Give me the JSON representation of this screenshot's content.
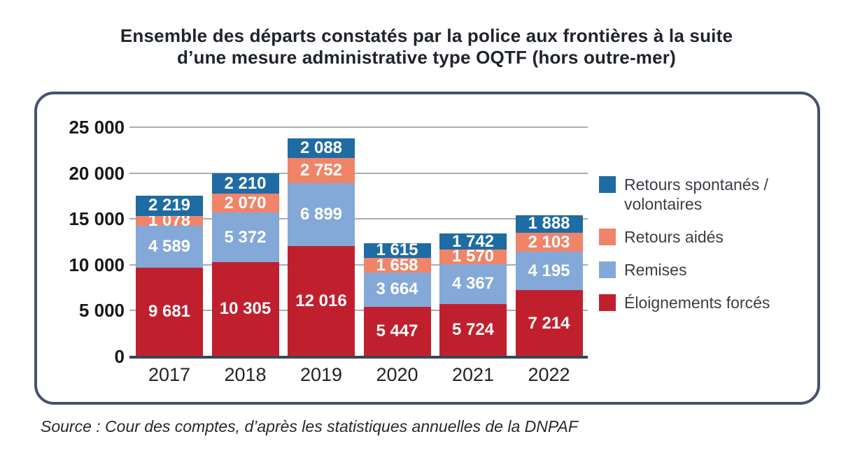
{
  "title": {
    "line1": "Ensemble des départs constatés par la police aux frontières à la suite",
    "line2": "d’une mesure administrative type OQTF (hors outre-mer)"
  },
  "source_text": "Source : Cour des comptes, d’après les statistiques annuelles de la DNPAF",
  "colors": {
    "forced_red": "#c0202e",
    "remises_blue": "#84a9d8",
    "aided_salmon": "#f08468",
    "voluntary_darkblue": "#1f6ba3",
    "frame_border": "#46526b",
    "gridline": "#a7aeb8",
    "axis_line": "#3a4657"
  },
  "chart_data": {
    "type": "bar",
    "stacked": true,
    "title": "Ensemble des départs constatés par la police aux frontières à la suite d’une mesure administrative type OQTF (hors outre-mer)",
    "categories": [
      "2017",
      "2018",
      "2019",
      "2020",
      "2021",
      "2022"
    ],
    "series": [
      {
        "name": "Éloignements forcés",
        "color": "#c0202e",
        "values": [
          9681,
          10305,
          12016,
          5447,
          5724,
          7214
        ]
      },
      {
        "name": "Remises",
        "color": "#84a9d8",
        "values": [
          4589,
          5372,
          6899,
          3664,
          4367,
          4195
        ]
      },
      {
        "name": "Retours aidés",
        "color": "#f08468",
        "values": [
          1078,
          2070,
          2752,
          1658,
          1570,
          2103
        ]
      },
      {
        "name": "Retours spontanés / volontaires",
        "color": "#1f6ba3",
        "values": [
          2219,
          2210,
          2088,
          1615,
          1742,
          1888
        ]
      }
    ],
    "legend": [
      {
        "label": "Retours spontanés / volontaires",
        "color": "#1f6ba3"
      },
      {
        "label": "Retours aidés",
        "color": "#f08468"
      },
      {
        "label": "Remises",
        "color": "#84a9d8"
      },
      {
        "label": "Éloignements forcés",
        "color": "#c0202e"
      }
    ],
    "xlabel": "",
    "ylabel": "",
    "ylim": [
      0,
      25000
    ],
    "yticks": [
      0,
      5000,
      10000,
      15000,
      20000,
      25000
    ],
    "ytick_labels": [
      "0",
      "5 000",
      "10 000",
      "15 000",
      "20 000",
      "25 000"
    ],
    "grid": true,
    "legend_position": "right",
    "value_labels": "white bold inside segments"
  }
}
